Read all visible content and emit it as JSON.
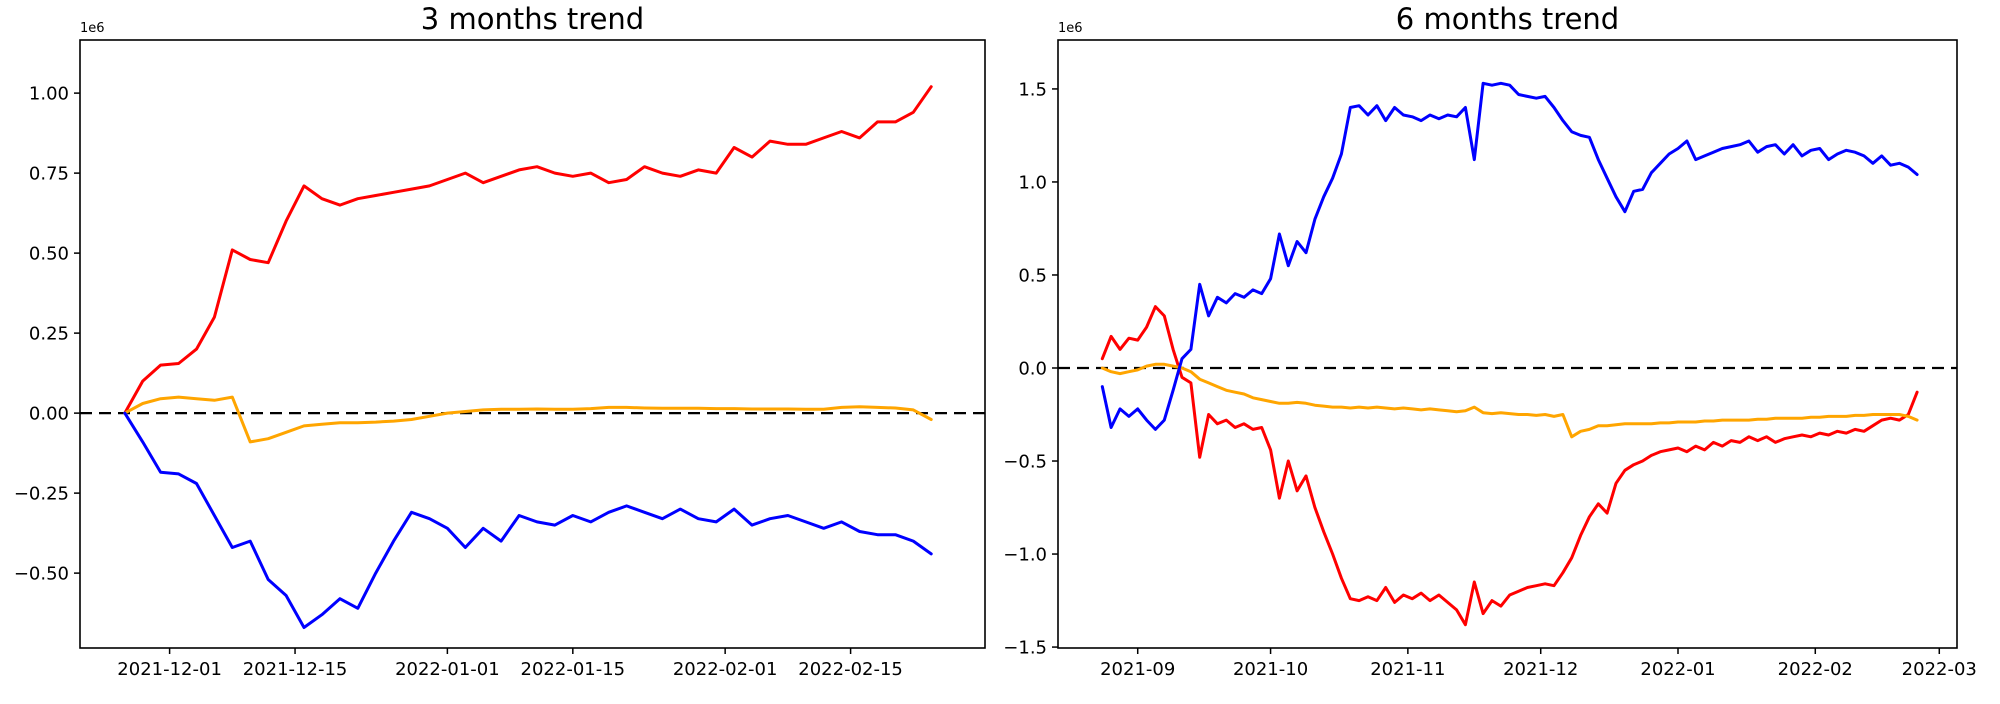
{
  "chart_data": [
    {
      "type": "line",
      "title": "3 months trend",
      "offset_text": "1e6",
      "xlabel": "",
      "ylabel": "",
      "unit_multiplier": 1000000,
      "xlim": [
        "2021-11-21",
        "2022-03-02"
      ],
      "ylim": [
        -0.734,
        1.166
      ],
      "grid": false,
      "legend": "none",
      "zero_line": {
        "style": "dashed",
        "color": "#000000",
        "y": 0
      },
      "x_ticks": [
        {
          "date": "2021-12-01",
          "label": "2021-12-01"
        },
        {
          "date": "2021-12-15",
          "label": "2021-12-15"
        },
        {
          "date": "2022-01-01",
          "label": "2022-01-01"
        },
        {
          "date": "2022-01-15",
          "label": "2022-01-15"
        },
        {
          "date": "2022-02-01",
          "label": "2022-02-01"
        },
        {
          "date": "2022-02-15",
          "label": "2022-02-15"
        }
      ],
      "y_ticks": [
        {
          "value": 1.0,
          "label": "1.00"
        },
        {
          "value": 0.75,
          "label": "0.75"
        },
        {
          "value": 0.5,
          "label": "0.50"
        },
        {
          "value": 0.25,
          "label": "0.25"
        },
        {
          "value": 0.0,
          "label": "0.00"
        },
        {
          "value": -0.25,
          "label": "−0.25"
        },
        {
          "value": -0.5,
          "label": "−0.50"
        }
      ],
      "x_start": "2021-11-26",
      "x_step_days": 2,
      "series": [
        {
          "name": "red",
          "color": "#ff0000",
          "values": [
            0.0,
            0.1,
            0.15,
            0.155,
            0.2,
            0.3,
            0.51,
            0.48,
            0.47,
            0.6,
            0.71,
            0.67,
            0.65,
            0.67,
            0.68,
            0.69,
            0.7,
            0.71,
            0.73,
            0.75,
            0.72,
            0.74,
            0.76,
            0.77,
            0.75,
            0.74,
            0.75,
            0.72,
            0.73,
            0.77,
            0.75,
            0.74,
            0.76,
            0.75,
            0.83,
            0.8,
            0.85,
            0.84,
            0.84,
            0.86,
            0.88,
            0.86,
            0.91,
            0.91,
            0.94,
            1.02
          ]
        },
        {
          "name": "orange",
          "color": "#ffa500",
          "values": [
            0.0,
            0.03,
            0.045,
            0.05,
            0.045,
            0.04,
            0.05,
            -0.09,
            -0.08,
            -0.06,
            -0.04,
            -0.035,
            -0.03,
            -0.03,
            -0.028,
            -0.025,
            -0.02,
            -0.01,
            0.0,
            0.005,
            0.01,
            0.012,
            0.012,
            0.013,
            0.012,
            0.012,
            0.014,
            0.018,
            0.018,
            0.016,
            0.015,
            0.015,
            0.015,
            0.014,
            0.014,
            0.013,
            0.013,
            0.013,
            0.012,
            0.012,
            0.018,
            0.02,
            0.018,
            0.016,
            0.01,
            -0.02
          ]
        },
        {
          "name": "blue",
          "color": "#0000ff",
          "values": [
            0.0,
            -0.09,
            -0.185,
            -0.19,
            -0.22,
            -0.32,
            -0.42,
            -0.4,
            -0.52,
            -0.57,
            -0.67,
            -0.63,
            -0.58,
            -0.61,
            -0.5,
            -0.4,
            -0.31,
            -0.33,
            -0.36,
            -0.42,
            -0.36,
            -0.4,
            -0.32,
            -0.34,
            -0.35,
            -0.32,
            -0.34,
            -0.31,
            -0.29,
            -0.31,
            -0.33,
            -0.3,
            -0.33,
            -0.34,
            -0.3,
            -0.35,
            -0.33,
            -0.32,
            -0.34,
            -0.36,
            -0.34,
            -0.37,
            -0.38,
            -0.38,
            -0.4,
            -0.44
          ]
        }
      ]
    },
    {
      "type": "line",
      "title": "6 months trend",
      "offset_text": "1e6",
      "xlabel": "",
      "ylabel": "",
      "unit_multiplier": 1000000,
      "xlim": [
        "2021-08-14",
        "2022-03-05"
      ],
      "ylim": [
        -1.505,
        1.763
      ],
      "grid": false,
      "legend": "none",
      "zero_line": {
        "style": "dashed",
        "color": "#000000",
        "y": 0
      },
      "x_ticks": [
        {
          "date": "2021-09-01",
          "label": "2021-09"
        },
        {
          "date": "2021-10-01",
          "label": "2021-10"
        },
        {
          "date": "2021-11-01",
          "label": "2021-11"
        },
        {
          "date": "2021-12-01",
          "label": "2021-12"
        },
        {
          "date": "2022-01-01",
          "label": "2022-01"
        },
        {
          "date": "2022-02-01",
          "label": "2022-02"
        },
        {
          "date": "2022-03-01",
          "label": "2022-03"
        }
      ],
      "y_ticks": [
        {
          "value": 1.5,
          "label": "1.5"
        },
        {
          "value": 1.0,
          "label": "1.0"
        },
        {
          "value": 0.5,
          "label": "0.5"
        },
        {
          "value": 0.0,
          "label": "0.0"
        },
        {
          "value": -0.5,
          "label": "−0.5"
        },
        {
          "value": -1.0,
          "label": "−1.0"
        },
        {
          "value": -1.5,
          "label": "−1.5"
        }
      ],
      "x_start": "2021-08-24",
      "x_step_days": 2,
      "series": [
        {
          "name": "red",
          "color": "#ff0000",
          "values": [
            0.05,
            0.17,
            0.1,
            0.16,
            0.15,
            0.22,
            0.33,
            0.28,
            0.1,
            -0.05,
            -0.08,
            -0.48,
            -0.25,
            -0.3,
            -0.28,
            -0.32,
            -0.3,
            -0.33,
            -0.32,
            -0.44,
            -0.7,
            -0.5,
            -0.66,
            -0.58,
            -0.75,
            -0.88,
            -1.0,
            -1.13,
            -1.24,
            -1.25,
            -1.23,
            -1.25,
            -1.18,
            -1.26,
            -1.22,
            -1.24,
            -1.21,
            -1.25,
            -1.22,
            -1.26,
            -1.3,
            -1.38,
            -1.15,
            -1.32,
            -1.25,
            -1.28,
            -1.22,
            -1.2,
            -1.18,
            -1.17,
            -1.16,
            -1.17,
            -1.1,
            -1.02,
            -0.9,
            -0.8,
            -0.73,
            -0.78,
            -0.62,
            -0.55,
            -0.52,
            -0.5,
            -0.47,
            -0.45,
            -0.44,
            -0.43,
            -0.45,
            -0.42,
            -0.44,
            -0.4,
            -0.42,
            -0.39,
            -0.4,
            -0.37,
            -0.39,
            -0.37,
            -0.4,
            -0.38,
            -0.37,
            -0.36,
            -0.37,
            -0.35,
            -0.36,
            -0.34,
            -0.35,
            -0.33,
            -0.34,
            -0.31,
            -0.28,
            -0.27,
            -0.28,
            -0.25,
            -0.13
          ]
        },
        {
          "name": "orange",
          "color": "#ffa500",
          "values": [
            0.0,
            -0.02,
            -0.03,
            -0.02,
            -0.01,
            0.01,
            0.02,
            0.02,
            0.01,
            0.0,
            -0.02,
            -0.06,
            -0.08,
            -0.1,
            -0.12,
            -0.13,
            -0.14,
            -0.16,
            -0.17,
            -0.18,
            -0.19,
            -0.19,
            -0.185,
            -0.19,
            -0.2,
            -0.205,
            -0.21,
            -0.21,
            -0.215,
            -0.21,
            -0.215,
            -0.21,
            -0.215,
            -0.22,
            -0.215,
            -0.22,
            -0.225,
            -0.22,
            -0.225,
            -0.23,
            -0.235,
            -0.23,
            -0.21,
            -0.24,
            -0.245,
            -0.24,
            -0.245,
            -0.25,
            -0.25,
            -0.255,
            -0.25,
            -0.26,
            -0.25,
            -0.37,
            -0.34,
            -0.33,
            -0.31,
            -0.31,
            -0.305,
            -0.3,
            -0.3,
            -0.3,
            -0.3,
            -0.295,
            -0.295,
            -0.29,
            -0.29,
            -0.29,
            -0.285,
            -0.285,
            -0.28,
            -0.28,
            -0.28,
            -0.28,
            -0.275,
            -0.275,
            -0.27,
            -0.27,
            -0.27,
            -0.27,
            -0.265,
            -0.265,
            -0.26,
            -0.26,
            -0.26,
            -0.255,
            -0.255,
            -0.25,
            -0.25,
            -0.25,
            -0.25,
            -0.26,
            -0.28
          ]
        },
        {
          "name": "blue",
          "color": "#0000ff",
          "values": [
            -0.1,
            -0.32,
            -0.22,
            -0.26,
            -0.22,
            -0.28,
            -0.33,
            -0.28,
            -0.12,
            0.05,
            0.1,
            0.45,
            0.28,
            0.38,
            0.35,
            0.4,
            0.38,
            0.42,
            0.4,
            0.48,
            0.72,
            0.55,
            0.68,
            0.62,
            0.8,
            0.92,
            1.02,
            1.15,
            1.4,
            1.41,
            1.36,
            1.41,
            1.33,
            1.4,
            1.36,
            1.35,
            1.33,
            1.36,
            1.34,
            1.36,
            1.35,
            1.4,
            1.12,
            1.53,
            1.52,
            1.53,
            1.52,
            1.47,
            1.46,
            1.45,
            1.46,
            1.4,
            1.33,
            1.27,
            1.25,
            1.24,
            1.12,
            1.02,
            0.92,
            0.84,
            0.95,
            0.96,
            1.05,
            1.1,
            1.15,
            1.18,
            1.22,
            1.12,
            1.14,
            1.16,
            1.18,
            1.19,
            1.2,
            1.22,
            1.16,
            1.19,
            1.2,
            1.15,
            1.2,
            1.14,
            1.17,
            1.18,
            1.12,
            1.15,
            1.17,
            1.16,
            1.14,
            1.1,
            1.14,
            1.09,
            1.1,
            1.08,
            1.04
          ]
        }
      ]
    }
  ]
}
